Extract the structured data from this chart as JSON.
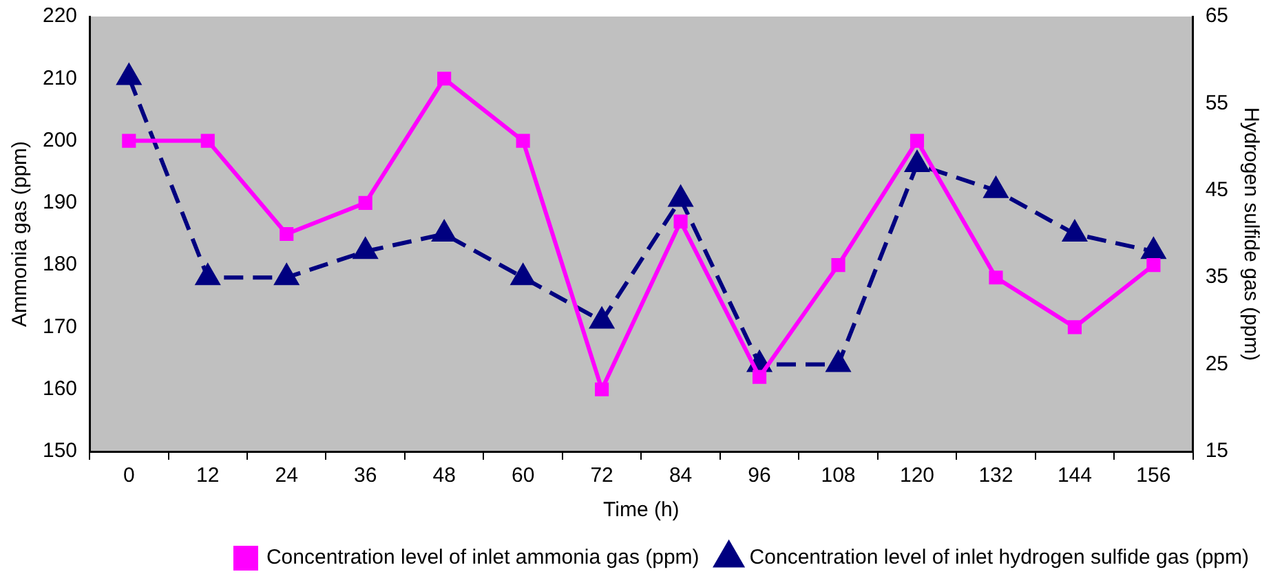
{
  "chart_data": {
    "type": "line",
    "xlabel": "Time (h)",
    "ylabel": "Ammonia gas (ppm)",
    "y2label": "Hydrogen sulfide gas (ppm)",
    "categories": [
      "0",
      "12",
      "24",
      "36",
      "48",
      "60",
      "72",
      "84",
      "96",
      "108",
      "120",
      "132",
      "144",
      "156"
    ],
    "series": [
      {
        "name": "Concentration level of inlet ammonia gas (ppm)",
        "color": "#ff00ff",
        "marker": "square",
        "line_style": "solid",
        "values": [
          200,
          200,
          185,
          190,
          210,
          200,
          160,
          187,
          162,
          180,
          200,
          178,
          170,
          180
        ]
      },
      {
        "name": "Concentration level of inlet hydrogen sulfide gas (ppm)",
        "color": "#000080",
        "marker": "triangle",
        "line_style": "dashed",
        "axis": "y2",
        "values": [
          58,
          35,
          35,
          38,
          40,
          35,
          30,
          44,
          25,
          25,
          48,
          45,
          40,
          38
        ]
      }
    ],
    "ylim": [
      150,
      220
    ],
    "yticks": [
      150,
      160,
      170,
      180,
      190,
      200,
      210,
      220
    ],
    "y2lim": [
      15,
      65
    ],
    "y2ticks": [
      15,
      25,
      35,
      45,
      55,
      65
    ],
    "grid": false,
    "legend": "bottom right"
  }
}
